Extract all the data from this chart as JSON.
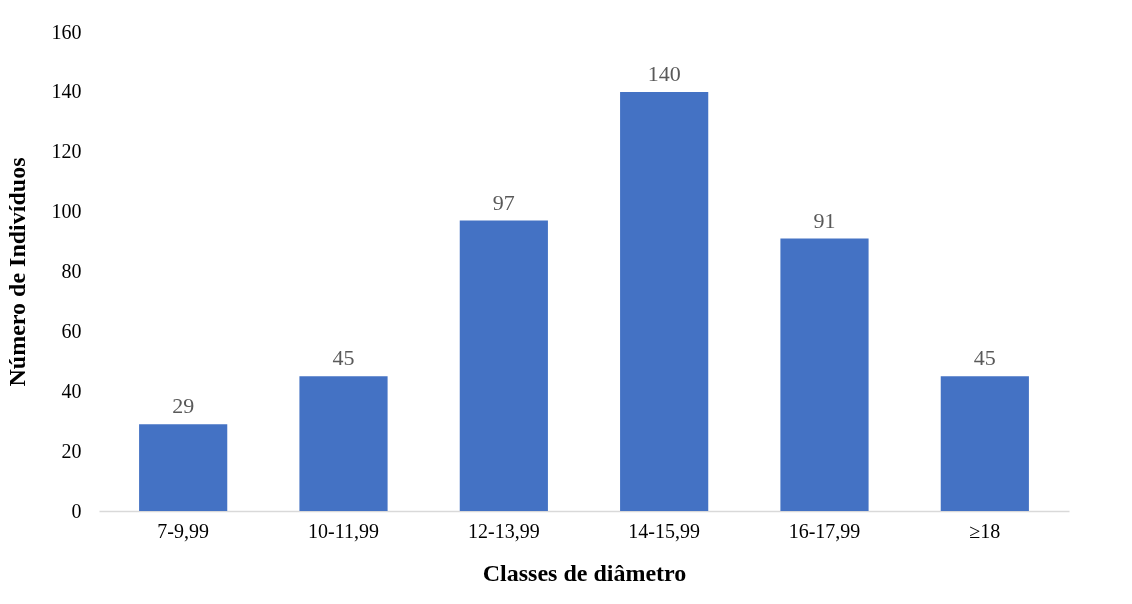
{
  "chart_data": {
    "type": "bar",
    "xlabel": "Classes de diâmetro",
    "ylabel": "Número de Indivíduos",
    "categories": [
      "7-9,99",
      "10-11,99",
      "12-13,99",
      "14-15,99",
      "16-17,99",
      "≥18"
    ],
    "values": [
      29,
      45,
      97,
      140,
      91,
      45
    ],
    "color": "#4472c4",
    "ylim": [
      0,
      160
    ],
    "yticks": [
      0,
      20,
      40,
      60,
      80,
      100,
      120,
      140,
      160
    ],
    "grid": false,
    "data_labels": true
  }
}
